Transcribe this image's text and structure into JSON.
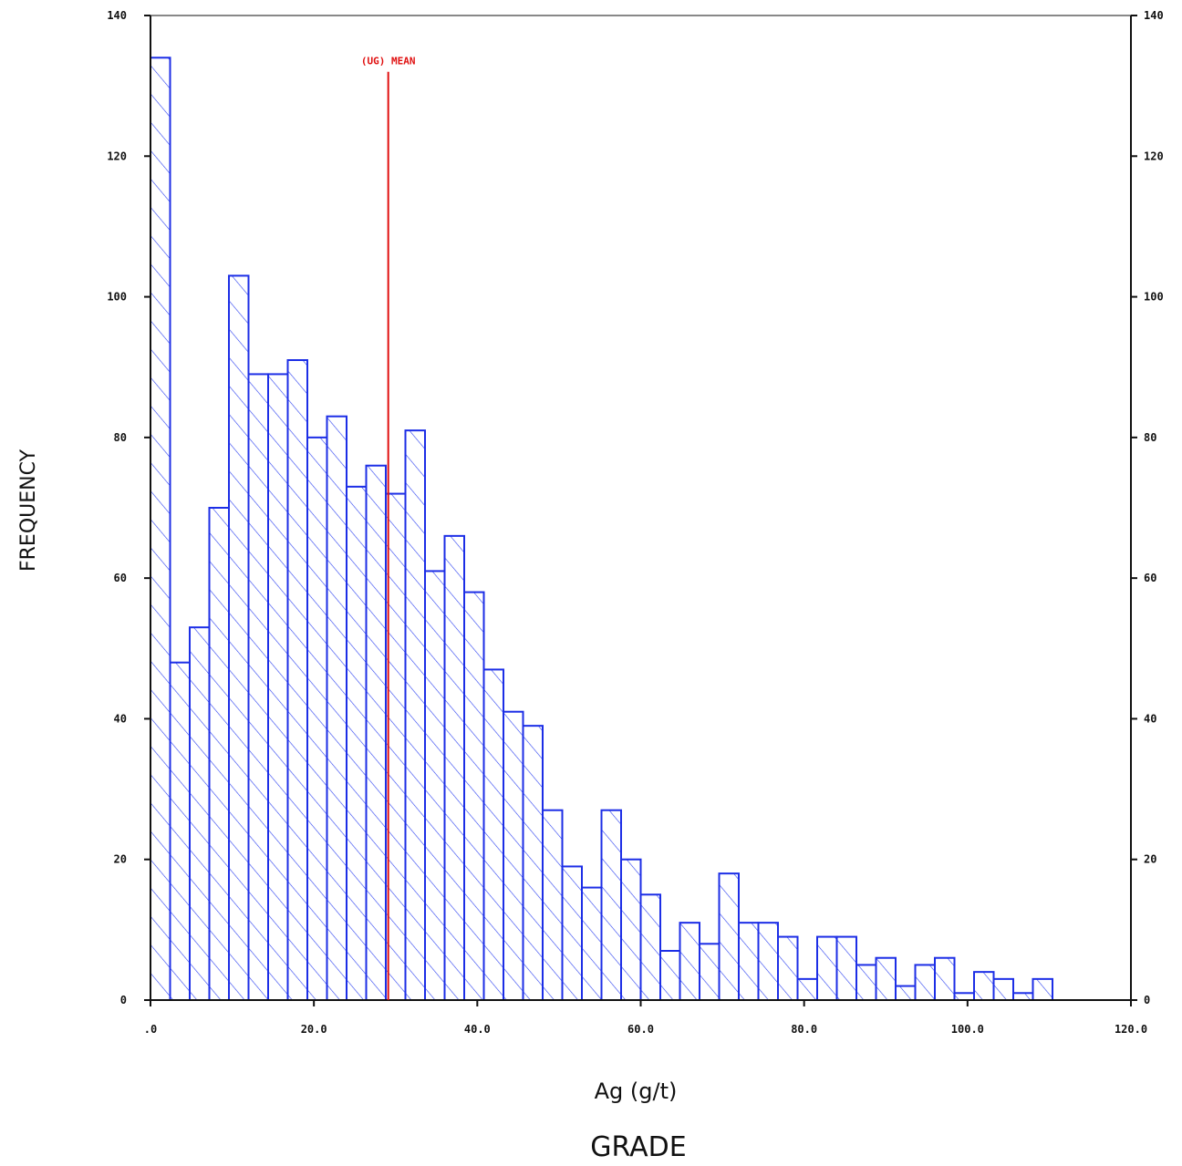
{
  "chart_data": {
    "type": "bar",
    "bin_width": 2.4,
    "x_start": 0,
    "values": [
      134,
      48,
      53,
      70,
      103,
      89,
      89,
      91,
      80,
      83,
      73,
      76,
      72,
      81,
      61,
      66,
      58,
      47,
      41,
      39,
      27,
      19,
      16,
      27,
      20,
      15,
      7,
      11,
      8,
      18,
      11,
      11,
      9,
      3,
      9,
      9,
      5,
      6,
      2,
      5,
      6,
      1,
      4,
      3,
      1,
      3
    ],
    "xlim": [
      0,
      120
    ],
    "ylim": [
      0,
      140
    ],
    "x_ticks": [
      0,
      20,
      40,
      60,
      80,
      100,
      120
    ],
    "x_tick_labels": [
      ".0",
      "20.0",
      "40.0",
      "60.0",
      "80.0",
      "100.0",
      "120.0"
    ],
    "y_ticks": [
      0,
      20,
      40,
      60,
      80,
      100,
      120,
      140
    ],
    "y_tick_labels": [
      "0",
      "20",
      "40",
      "60",
      "80",
      "100",
      "120",
      "140"
    ],
    "ylabel": "FREQUENCY",
    "xlabel": "Ag (g/t)",
    "xlabel2": "GRADE",
    "mean_line": {
      "x": 29.1,
      "label": "(UG) MEAN"
    },
    "grid": false,
    "hatched": true,
    "colors": {
      "bars": "#1c2ee6",
      "mean": "#e01010",
      "axis": "#111111"
    }
  }
}
